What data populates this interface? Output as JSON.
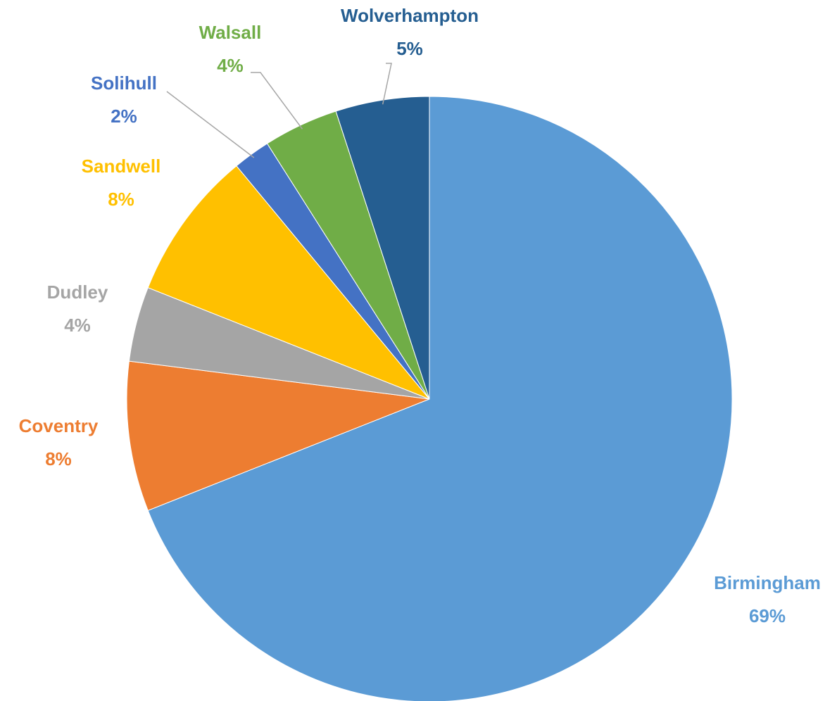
{
  "chart_data": {
    "type": "pie",
    "categories": [
      "Birmingham",
      "Coventry",
      "Dudley",
      "Sandwell",
      "Solihull",
      "Walsall",
      "Wolverhampton"
    ],
    "values": [
      69,
      8,
      4,
      8,
      2,
      4,
      5
    ],
    "value_labels": [
      "69%",
      "8%",
      "4%",
      "8%",
      "2%",
      "4%",
      "5%"
    ],
    "colors": [
      "#5b9bd5",
      "#ed7d31",
      "#a5a5a5",
      "#ffc000",
      "#4472c4",
      "#70ad47",
      "#255e91"
    ]
  }
}
